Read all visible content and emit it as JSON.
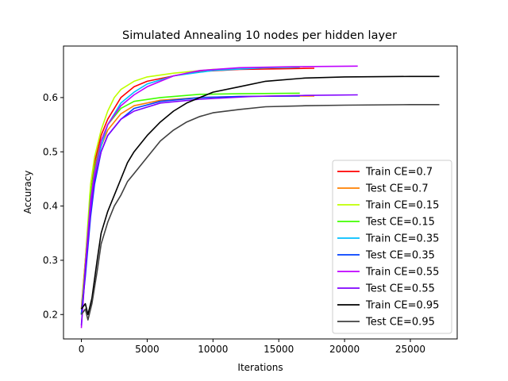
{
  "chart_data": {
    "type": "line",
    "title": "Simulated Annealing 10 nodes per hidden layer",
    "xlabel": "Iterations",
    "ylabel": "Accuracy",
    "xlim": [
      -1360,
      28560
    ],
    "ylim": [
      0.155,
      0.695
    ],
    "xticks": [
      0,
      5000,
      10000,
      15000,
      20000,
      25000
    ],
    "yticks": [
      0.2,
      0.3,
      0.4,
      0.5,
      0.6
    ],
    "grid": false,
    "legend_position": "lower-right",
    "series": [
      {
        "name": "Train CE=0.7",
        "color": "#ff0000",
        "points": [
          [
            0,
            0.21
          ],
          [
            300,
            0.3
          ],
          [
            700,
            0.42
          ],
          [
            1000,
            0.48
          ],
          [
            1500,
            0.53
          ],
          [
            2000,
            0.56
          ],
          [
            3000,
            0.6
          ],
          [
            4000,
            0.62
          ],
          [
            5000,
            0.63
          ],
          [
            7000,
            0.64
          ],
          [
            9000,
            0.648
          ],
          [
            12000,
            0.652
          ],
          [
            15000,
            0.653
          ],
          [
            17700,
            0.654
          ]
        ]
      },
      {
        "name": "Test CE=0.7",
        "color": "#ff8000",
        "points": [
          [
            0,
            0.2
          ],
          [
            300,
            0.28
          ],
          [
            700,
            0.4
          ],
          [
            1000,
            0.46
          ],
          [
            1500,
            0.51
          ],
          [
            2000,
            0.54
          ],
          [
            3000,
            0.57
          ],
          [
            4000,
            0.585
          ],
          [
            6000,
            0.595
          ],
          [
            9000,
            0.6
          ],
          [
            12000,
            0.602
          ],
          [
            15000,
            0.603
          ],
          [
            17700,
            0.603
          ]
        ]
      },
      {
        "name": "Train CE=0.15",
        "color": "#bfff00",
        "points": [
          [
            0,
            0.2
          ],
          [
            300,
            0.3
          ],
          [
            700,
            0.44
          ],
          [
            1000,
            0.49
          ],
          [
            1500,
            0.54
          ],
          [
            2000,
            0.575
          ],
          [
            2500,
            0.6
          ],
          [
            3000,
            0.615
          ],
          [
            4000,
            0.63
          ],
          [
            5000,
            0.638
          ],
          [
            7000,
            0.645
          ],
          [
            10000,
            0.652
          ],
          [
            14000,
            0.655
          ],
          [
            16600,
            0.656
          ]
        ]
      },
      {
        "name": "Test CE=0.15",
        "color": "#40ff00",
        "points": [
          [
            0,
            0.2
          ],
          [
            300,
            0.29
          ],
          [
            700,
            0.42
          ],
          [
            1000,
            0.47
          ],
          [
            1500,
            0.52
          ],
          [
            2000,
            0.55
          ],
          [
            3000,
            0.58
          ],
          [
            4000,
            0.593
          ],
          [
            6000,
            0.6
          ],
          [
            9000,
            0.606
          ],
          [
            12000,
            0.607
          ],
          [
            16600,
            0.608
          ]
        ]
      },
      {
        "name": "Train CE=0.35",
        "color": "#00bfff",
        "points": [
          [
            0,
            0.2
          ],
          [
            300,
            0.28
          ],
          [
            700,
            0.4
          ],
          [
            1000,
            0.46
          ],
          [
            1500,
            0.51
          ],
          [
            2000,
            0.55
          ],
          [
            3000,
            0.59
          ],
          [
            4000,
            0.61
          ],
          [
            5000,
            0.625
          ],
          [
            7000,
            0.64
          ],
          [
            10000,
            0.65
          ],
          [
            14000,
            0.655
          ],
          [
            16600,
            0.656
          ]
        ]
      },
      {
        "name": "Test CE=0.35",
        "color": "#0040ff",
        "points": [
          [
            0,
            0.2
          ],
          [
            300,
            0.27
          ],
          [
            700,
            0.38
          ],
          [
            1000,
            0.44
          ],
          [
            1500,
            0.5
          ],
          [
            2000,
            0.53
          ],
          [
            3000,
            0.56
          ],
          [
            4000,
            0.58
          ],
          [
            6000,
            0.593
          ],
          [
            9000,
            0.6
          ],
          [
            12000,
            0.602
          ],
          [
            16600,
            0.603
          ]
        ]
      },
      {
        "name": "Train CE=0.55",
        "color": "#bf00ff",
        "points": [
          [
            0,
            0.175
          ],
          [
            300,
            0.29
          ],
          [
            700,
            0.41
          ],
          [
            1000,
            0.46
          ],
          [
            1500,
            0.52
          ],
          [
            2000,
            0.55
          ],
          [
            3000,
            0.585
          ],
          [
            4000,
            0.605
          ],
          [
            5000,
            0.62
          ],
          [
            7000,
            0.64
          ],
          [
            9000,
            0.65
          ],
          [
            12000,
            0.655
          ],
          [
            16000,
            0.657
          ],
          [
            21000,
            0.658
          ]
        ]
      },
      {
        "name": "Test CE=0.55",
        "color": "#8000ff",
        "points": [
          [
            0,
            0.18
          ],
          [
            300,
            0.28
          ],
          [
            700,
            0.39
          ],
          [
            1000,
            0.45
          ],
          [
            1500,
            0.5
          ],
          [
            2000,
            0.53
          ],
          [
            3000,
            0.56
          ],
          [
            4000,
            0.575
          ],
          [
            6000,
            0.59
          ],
          [
            9000,
            0.597
          ],
          [
            13000,
            0.602
          ],
          [
            17000,
            0.604
          ],
          [
            21000,
            0.605
          ]
        ]
      },
      {
        "name": "Train CE=0.95",
        "color": "#000000",
        "points": [
          [
            0,
            0.21
          ],
          [
            300,
            0.22
          ],
          [
            500,
            0.2
          ],
          [
            800,
            0.23
          ],
          [
            1200,
            0.3
          ],
          [
            1500,
            0.35
          ],
          [
            2000,
            0.39
          ],
          [
            2500,
            0.42
          ],
          [
            3000,
            0.45
          ],
          [
            3500,
            0.48
          ],
          [
            4000,
            0.5
          ],
          [
            5000,
            0.53
          ],
          [
            6000,
            0.555
          ],
          [
            7000,
            0.575
          ],
          [
            8000,
            0.59
          ],
          [
            9000,
            0.6
          ],
          [
            10000,
            0.61
          ],
          [
            12000,
            0.62
          ],
          [
            14000,
            0.63
          ],
          [
            17000,
            0.636
          ],
          [
            20000,
            0.638
          ],
          [
            25000,
            0.639
          ],
          [
            27200,
            0.639
          ]
        ]
      },
      {
        "name": "Test CE=0.95",
        "color": "#404040",
        "points": [
          [
            0,
            0.2
          ],
          [
            300,
            0.21
          ],
          [
            500,
            0.19
          ],
          [
            800,
            0.22
          ],
          [
            1200,
            0.28
          ],
          [
            1500,
            0.33
          ],
          [
            2000,
            0.37
          ],
          [
            2500,
            0.4
          ],
          [
            3000,
            0.42
          ],
          [
            3500,
            0.445
          ],
          [
            4000,
            0.46
          ],
          [
            5000,
            0.49
          ],
          [
            6000,
            0.52
          ],
          [
            7000,
            0.54
          ],
          [
            8000,
            0.555
          ],
          [
            9000,
            0.565
          ],
          [
            10000,
            0.572
          ],
          [
            12000,
            0.578
          ],
          [
            14000,
            0.583
          ],
          [
            17000,
            0.585
          ],
          [
            20000,
            0.586
          ],
          [
            25000,
            0.587
          ],
          [
            27200,
            0.587
          ]
        ]
      }
    ]
  }
}
